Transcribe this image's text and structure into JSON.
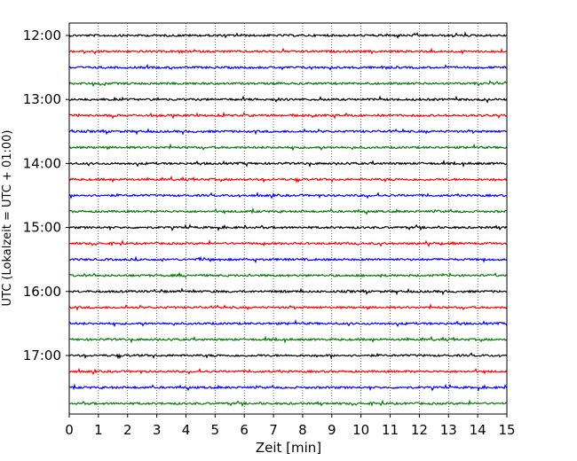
{
  "chart_data": {
    "type": "line",
    "title": "",
    "xlabel": "Zeit  [min]",
    "ylabel": "UTC (Lokalzeit = UTC + 01:00)",
    "xlim": [
      0,
      15
    ],
    "x_ticks": [
      "0",
      "1",
      "2",
      "3",
      "4",
      "5",
      "6",
      "7",
      "8",
      "9",
      "10",
      "11",
      "12",
      "13",
      "14",
      "15"
    ],
    "y_tick_labels": [
      "12:00",
      "13:00",
      "14:00",
      "15:00",
      "16:00",
      "17:00"
    ],
    "trace_start_times": [
      "12:00",
      "12:15",
      "12:30",
      "12:45",
      "13:00",
      "13:15",
      "13:30",
      "13:45",
      "14:00",
      "14:15",
      "14:30",
      "14:45",
      "15:00",
      "15:15",
      "15:30",
      "15:45",
      "16:00",
      "16:15",
      "16:30",
      "16:45",
      "17:00",
      "17:15",
      "17:30",
      "17:45"
    ],
    "trace_colors": [
      "#000000",
      "#ff0000",
      "#0000ff",
      "#007f00"
    ],
    "grid": "vertical dotted",
    "legend": "none"
  }
}
